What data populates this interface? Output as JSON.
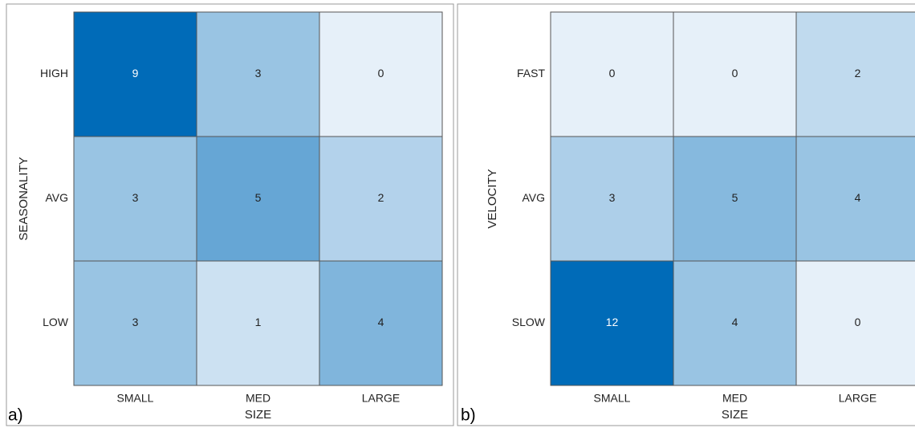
{
  "chart_data": [
    {
      "type": "heatmap",
      "panel_label": "a)",
      "x_label": "SIZE",
      "y_label": "SEASONALITY",
      "x_categories": [
        "SMALL",
        "MED",
        "LARGE"
      ],
      "y_categories": [
        "HIGH",
        "AVG",
        "LOW"
      ],
      "values": [
        [
          9,
          3,
          0
        ],
        [
          3,
          5,
          2
        ],
        [
          3,
          1,
          4
        ]
      ],
      "colors": [
        "#e6f0f9",
        "#006bb8"
      ]
    },
    {
      "type": "heatmap",
      "panel_label": "b)",
      "x_label": "SIZE",
      "y_label": "VELOCITY",
      "x_categories": [
        "SMALL",
        "MED",
        "LARGE"
      ],
      "y_categories": [
        "FAST",
        "AVG",
        "SLOW"
      ],
      "values": [
        [
          0,
          0,
          2
        ],
        [
          3,
          5,
          4
        ],
        [
          12,
          4,
          0
        ]
      ],
      "colors": [
        "#e6f0f9",
        "#006bb8"
      ]
    }
  ]
}
